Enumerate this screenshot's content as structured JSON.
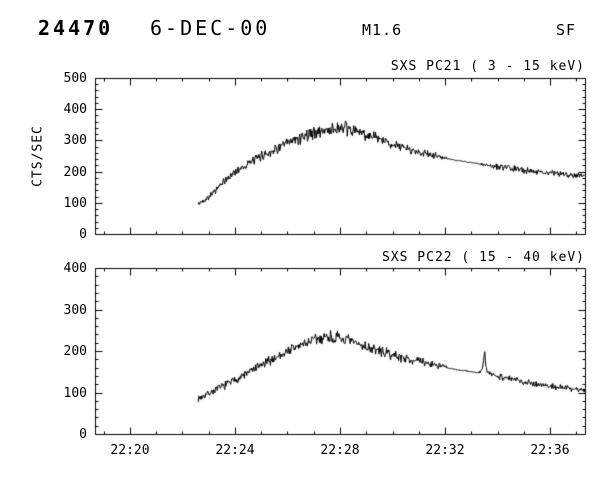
{
  "header": {
    "event_number": "24470",
    "date": "6-DEC-00",
    "xray_class": "M1.6",
    "flare_type": "SF"
  },
  "colors": {
    "foreground": "#000000",
    "background": "#ffffff"
  },
  "chart_data": [
    {
      "type": "line",
      "title": "SXS PC21 ( 3 - 15 keV)",
      "ylabel": "CTS/SEC",
      "ylim": [
        0,
        500
      ],
      "yticks": [
        0,
        100,
        200,
        300,
        400,
        500
      ],
      "y_minor_step": 20,
      "xlim_minutes_after_2200": [
        18.67,
        37.33
      ],
      "xticks": [
        {
          "minutes": 20,
          "label": "22:20"
        },
        {
          "minutes": 24,
          "label": "22:24"
        },
        {
          "minutes": 28,
          "label": "22:28"
        },
        {
          "minutes": 32,
          "label": "22:32"
        },
        {
          "minutes": 36,
          "label": "22:36"
        }
      ],
      "x_minor_step": 1,
      "show_x_tick_labels": false,
      "grid": false,
      "legend": "none",
      "line_color": "#000000",
      "seed": 42,
      "series": {
        "name": "SXS PC21",
        "x_minutes": [
          22.6,
          23.0,
          24.0,
          25.0,
          26.0,
          26.8,
          27.4,
          28.0,
          28.6,
          29.2,
          30.0,
          31.0,
          31.9,
          32.15,
          33.2,
          34.0,
          35.0,
          36.0,
          37.33
        ],
        "y_cts_per_sec": [
          95,
          120,
          200,
          250,
          290,
          320,
          332,
          338,
          330,
          312,
          288,
          262,
          246,
          240,
          226,
          215,
          205,
          196,
          186
        ],
        "noise_amp": [
          10,
          12,
          16,
          18,
          22,
          26,
          30,
          30,
          26,
          22,
          18,
          15,
          12,
          2,
          2,
          12,
          12,
          11,
          11
        ]
      }
    },
    {
      "type": "line",
      "title": "SXS PC22 ( 15 - 40 keV)",
      "ylabel": "",
      "ylim": [
        0,
        400
      ],
      "yticks": [
        0,
        100,
        200,
        300,
        400
      ],
      "y_minor_step": 20,
      "xlim_minutes_after_2200": [
        18.67,
        37.33
      ],
      "xticks": [
        {
          "minutes": 20,
          "label": "22:20"
        },
        {
          "minutes": 24,
          "label": "22:24"
        },
        {
          "minutes": 28,
          "label": "22:28"
        },
        {
          "minutes": 32,
          "label": "22:32"
        },
        {
          "minutes": 36,
          "label": "22:36"
        }
      ],
      "x_minor_step": 1,
      "show_x_tick_labels": true,
      "grid": false,
      "legend": "none",
      "line_color": "#000000",
      "seed": 7,
      "series": {
        "name": "SXS PC22",
        "x_minutes": [
          22.6,
          23.0,
          24.0,
          25.0,
          26.0,
          26.8,
          27.5,
          28.2,
          29.0,
          30.0,
          31.0,
          31.9,
          32.15,
          33.2,
          33.4,
          33.5,
          33.6,
          34.0,
          35.0,
          36.0,
          37.33
        ],
        "y_cts_per_sec": [
          85,
          98,
          130,
          165,
          200,
          222,
          235,
          227,
          210,
          190,
          175,
          163,
          158,
          148,
          150,
          192,
          148,
          140,
          126,
          115,
          106
        ],
        "noise_amp": [
          9,
          10,
          12,
          14,
          16,
          18,
          20,
          18,
          16,
          14,
          12,
          10,
          2,
          2,
          8,
          14,
          8,
          10,
          9,
          9,
          8
        ]
      }
    }
  ]
}
